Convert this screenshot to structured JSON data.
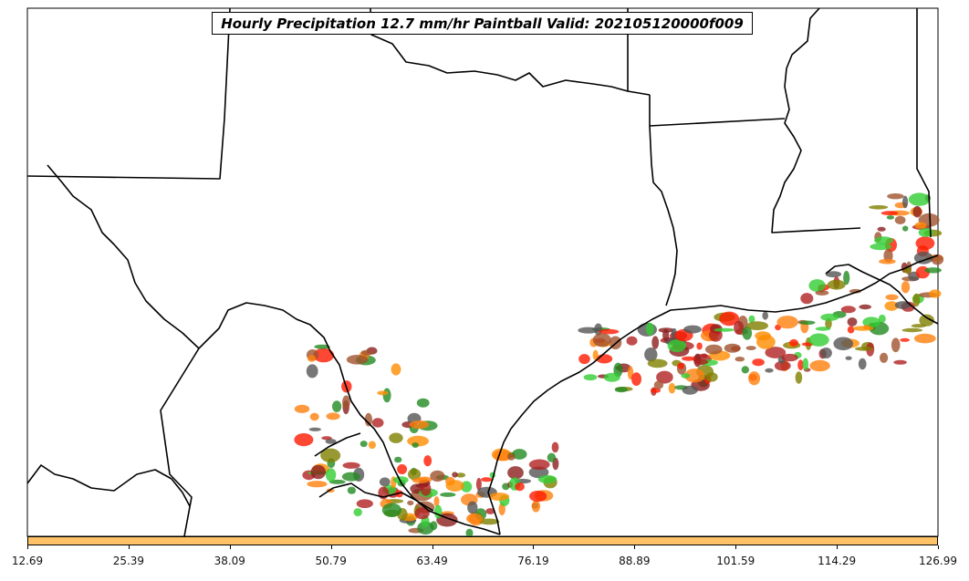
{
  "title": "Hourly Precipitation 12.7 mm/hr Paintball Valid: 202105120000f009",
  "map": {
    "borders": "state-boundaries-and-coastline",
    "background": "#ffffff",
    "blob_colors": [
      "#ff7f0e",
      "#ff1a00",
      "#8b1e1e",
      "#808000",
      "#228b22",
      "#32cd32",
      "#a0522d",
      "#555555",
      "#ff8c00",
      "#b22222"
    ]
  },
  "colorbar": {
    "color": "#ffc266",
    "ticks": [
      "12.69",
      "25.39",
      "38.09",
      "50.79",
      "63.49",
      "76.19",
      "88.89",
      "101.59",
      "114.29",
      "126.99"
    ]
  }
}
